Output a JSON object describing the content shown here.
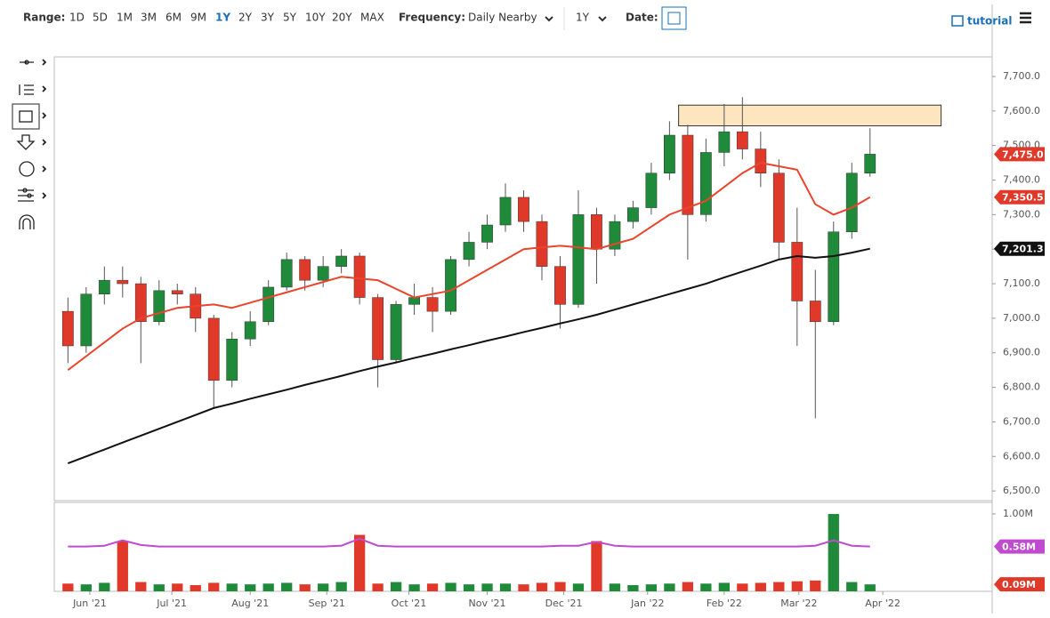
{
  "toolbar": {
    "range_label": "Range:",
    "ranges": [
      "1D",
      "5D",
      "1M",
      "3M",
      "6M",
      "9M",
      "1Y",
      "2Y",
      "3Y",
      "5Y",
      "10Y",
      "20Y",
      "MAX"
    ],
    "active_range": "1Y",
    "frequency_label": "Frequency:",
    "frequency": "Daily Nearby",
    "period": "1Y",
    "date_label": "Date:",
    "tutorial": "tutorial"
  },
  "chart_data": {
    "type": "candlestick",
    "categories": [
      null,
      null,
      null,
      null,
      null,
      null,
      null,
      null,
      null,
      null,
      null,
      null,
      null,
      null,
      null,
      null,
      null,
      null,
      null,
      null,
      null,
      null,
      null,
      null,
      null,
      null,
      null,
      null,
      null,
      null,
      null,
      null,
      null,
      null,
      null,
      null,
      null,
      null,
      null,
      null,
      null,
      null,
      null,
      null,
      null
    ],
    "open": [
      7020,
      6920,
      7070,
      7110,
      7100,
      6990,
      7080,
      7070,
      7000,
      6820,
      6940,
      6990,
      7090,
      7170,
      7110,
      7150,
      7180,
      7060,
      6880,
      7040,
      7060,
      7020,
      7170,
      7220,
      7270,
      7350,
      7280,
      7150,
      7040,
      7300,
      7200,
      7280,
      7320,
      7420,
      7530,
      7300,
      7480,
      7540,
      7490,
      7420,
      7220,
      7050,
      6990,
      7250,
      7420
    ],
    "high": [
      7060,
      7090,
      7150,
      7150,
      7120,
      7110,
      7100,
      7090,
      7010,
      6960,
      7020,
      7110,
      7190,
      7180,
      7180,
      7200,
      7190,
      7070,
      7050,
      7100,
      7090,
      7180,
      7250,
      7300,
      7390,
      7370,
      7300,
      7180,
      7370,
      7320,
      7300,
      7340,
      7450,
      7570,
      7560,
      7520,
      7620,
      7640,
      7540,
      7460,
      7320,
      7140,
      7280,
      7450,
      7550
    ],
    "low": [
      6870,
      6900,
      7040,
      7060,
      6870,
      6980,
      7040,
      6960,
      6740,
      6800,
      6920,
      6980,
      7080,
      7080,
      7090,
      7130,
      7040,
      6800,
      6870,
      7010,
      6960,
      7010,
      7150,
      7200,
      7250,
      7250,
      7110,
      6970,
      7030,
      7100,
      7180,
      7260,
      7300,
      7400,
      7170,
      7280,
      7440,
      7460,
      7380,
      7170,
      6920,
      6710,
      6980,
      7230,
      7410
    ],
    "close": [
      6920,
      7070,
      7110,
      7100,
      6990,
      7080,
      7070,
      7000,
      6820,
      6940,
      6990,
      7090,
      7170,
      7110,
      7150,
      7180,
      7060,
      6880,
      7040,
      7060,
      7020,
      7170,
      7220,
      7270,
      7350,
      7280,
      7150,
      7040,
      7300,
      7200,
      7280,
      7320,
      7420,
      7530,
      7300,
      7480,
      7540,
      7490,
      7420,
      7220,
      7050,
      6990,
      7250,
      7420,
      7475
    ],
    "up_color": "#1e8a3a",
    "down_color": "#e0392a",
    "series": [
      {
        "color": "#e8452c",
        "values": [
          6850,
          6890,
          6930,
          6970,
          7000,
          7015,
          7030,
          7035,
          7040,
          7030,
          7045,
          7060,
          7075,
          7090,
          7105,
          7120,
          7115,
          7110,
          7085,
          7060,
          7070,
          7080,
          7110,
          7140,
          7170,
          7200,
          7205,
          7210,
          7205,
          7200,
          7215,
          7230,
          7265,
          7300,
          7320,
          7340,
          7380,
          7420,
          7450,
          7440,
          7430,
          7330,
          7300,
          7320,
          7350.5
        ]
      },
      {
        "color": "#111111",
        "values": [
          6580,
          6600,
          6620,
          6640,
          6660,
          6680,
          6700,
          6720,
          6740,
          6753,
          6767,
          6780,
          6793,
          6807,
          6820,
          6833,
          6847,
          6860,
          6872,
          6885,
          6897,
          6910,
          6922,
          6935,
          6947,
          6960,
          6972,
          6985,
          6997,
          7010,
          7025,
          7040,
          7055,
          7070,
          7085,
          7100,
          7118,
          7135,
          7152,
          7170,
          7180,
          7175,
          7180,
          7190,
          7201.3
        ]
      }
    ],
    "badges": [
      {
        "value": 7475,
        "label": "7,475.0",
        "color": "#e0392a"
      },
      {
        "value": 7350.5,
        "label": "7,350.5",
        "color": "#e0392a"
      },
      {
        "value": 7201.3,
        "label": "7,201.3",
        "color": "#111111"
      }
    ],
    "zone": {
      "xlim": [
        33.5,
        47.9
      ],
      "ylim": [
        7557,
        7617
      ],
      "color": "#fde6bf"
    },
    "xlim": [
      -0.7,
      50.7
    ],
    "xticks": [
      {
        "value": 1.2,
        "label": "Jun '21"
      },
      {
        "value": 5.7,
        "label": "Jul '21"
      },
      {
        "value": 10.0,
        "label": "Aug '21"
      },
      {
        "value": 14.2,
        "label": "Sep '21"
      },
      {
        "value": 18.7,
        "label": "Oct '21"
      },
      {
        "value": 23.0,
        "label": "Nov '21"
      },
      {
        "value": 27.2,
        "label": "Dec '21"
      },
      {
        "value": 31.8,
        "label": "Jan '22"
      },
      {
        "value": 36.0,
        "label": "Feb '22"
      },
      {
        "value": 40.1,
        "label": "Mar '22"
      },
      {
        "value": 44.7,
        "label": "Apr '22"
      }
    ],
    "ylim": [
      6472,
      7754
    ],
    "yticks": [
      {
        "value": 6500,
        "label": "6,500.0"
      },
      {
        "value": 6600,
        "label": "6,600.0"
      },
      {
        "value": 6700,
        "label": "6,700.0"
      },
      {
        "value": 6800,
        "label": "6,800.0"
      },
      {
        "value": 6900,
        "label": "6,900.0"
      },
      {
        "value": 7000,
        "label": "7,000.0"
      },
      {
        "value": 7100,
        "label": "7,100.0"
      },
      {
        "value": 7200,
        "label": "7,200.0"
      },
      {
        "value": 7300,
        "label": "7,300.0"
      },
      {
        "value": 7400,
        "label": "7,400.0"
      },
      {
        "value": 7500,
        "label": "7,500.0"
      },
      {
        "value": 7600,
        "label": "7,600.0"
      },
      {
        "value": 7700,
        "label": "7,700.0"
      }
    ],
    "volume": {
      "values": [
        0.1,
        0.09,
        0.11,
        0.65,
        0.12,
        0.09,
        0.1,
        0.08,
        0.11,
        0.1,
        0.09,
        0.1,
        0.11,
        0.09,
        0.1,
        0.12,
        0.73,
        0.1,
        0.12,
        0.09,
        0.1,
        0.11,
        0.09,
        0.1,
        0.1,
        0.09,
        0.11,
        0.12,
        0.1,
        0.65,
        0.1,
        0.08,
        0.09,
        0.1,
        0.12,
        0.1,
        0.11,
        0.1,
        0.11,
        0.12,
        0.13,
        0.14,
        1.0,
        0.12,
        0.09
      ],
      "average": {
        "color": "#c04ad0",
        "values": [
          0.58,
          0.58,
          0.59,
          0.66,
          0.6,
          0.58,
          0.58,
          0.58,
          0.58,
          0.58,
          0.58,
          0.58,
          0.58,
          0.58,
          0.58,
          0.59,
          0.68,
          0.59,
          0.58,
          0.58,
          0.58,
          0.58,
          0.58,
          0.58,
          0.58,
          0.58,
          0.58,
          0.59,
          0.59,
          0.64,
          0.59,
          0.58,
          0.58,
          0.58,
          0.58,
          0.58,
          0.58,
          0.58,
          0.58,
          0.58,
          0.58,
          0.59,
          0.66,
          0.59,
          0.58
        ]
      },
      "ylim": [
        0,
        1.15
      ],
      "yticks": [
        {
          "value": 1,
          "label": "1.00M"
        }
      ],
      "badges": [
        {
          "value": 0.58,
          "label": "0.58M",
          "color": "#c04ad0"
        },
        {
          "value": 0.09,
          "label": "0.09M",
          "color": "#e0392a"
        }
      ]
    }
  }
}
